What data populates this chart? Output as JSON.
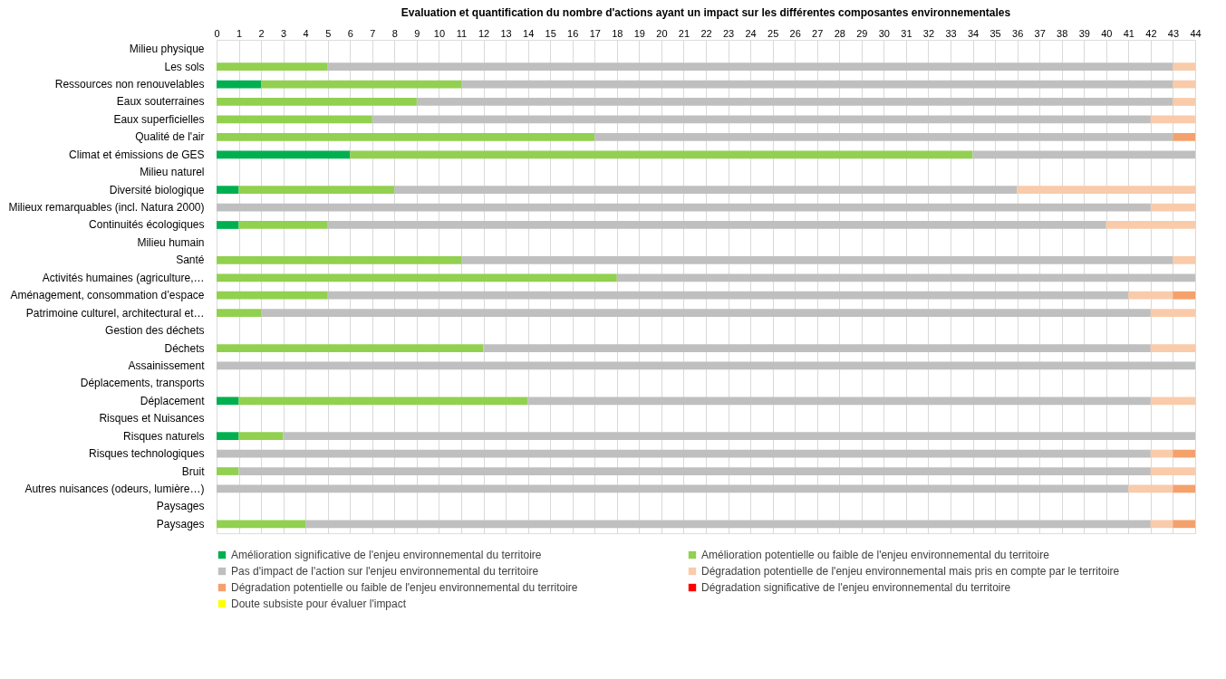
{
  "chart_data": {
    "type": "bar",
    "orientation": "horizontal",
    "stacked": true,
    "title": "Evaluation et quantification du nombre d'actions ayant un impact sur les différentes composantes environnementales",
    "categories": [
      "Milieu physique",
      "Les sols",
      "Ressources non renouvelables",
      "Eaux souterraines",
      "Eaux superficielles",
      "Qualité de l'air",
      "Climat et émissions de GES",
      "Milieu naturel",
      "Diversité biologique",
      "Milieux remarquables  (incl. Natura 2000)",
      "Continuités écologiques",
      "Milieu humain",
      "Santé",
      "Activités humaines (agriculture,…",
      "Aménagement, consommation d’espace",
      "Patrimoine culturel, architectural et…",
      "Gestion des déchets",
      "Déchets",
      "Assainissement",
      "Déplacements, transports",
      "Déplacement",
      "Risques et Nuisances",
      "Risques naturels",
      "Risques technologiques",
      "Bruit",
      "Autres nuisances (odeurs, lumière…)",
      "Paysages",
      "Paysages"
    ],
    "series": [
      {
        "name": "Amélioration significative de l'enjeu environnemental du territoire",
        "color": "#00b050",
        "values": [
          null,
          null,
          2,
          null,
          null,
          null,
          6,
          null,
          1,
          null,
          1,
          null,
          null,
          null,
          null,
          null,
          null,
          null,
          null,
          null,
          1,
          null,
          1,
          null,
          null,
          null,
          null,
          null
        ]
      },
      {
        "name": "Amélioration potentielle ou faible de l'enjeu environnemental du territoire",
        "color": "#92d050",
        "values": [
          null,
          5,
          9,
          9,
          7,
          17,
          28,
          null,
          7,
          null,
          4,
          null,
          11,
          18,
          5,
          2,
          null,
          12,
          null,
          null,
          13,
          null,
          2,
          null,
          1,
          null,
          null,
          4
        ]
      },
      {
        "name": "Pas d'impact de l'action sur l'enjeu environnemental du territoire",
        "color": "#bfbfbf",
        "values": [
          null,
          38,
          32,
          34,
          35,
          26,
          10,
          null,
          28,
          42,
          35,
          null,
          32,
          26,
          36,
          40,
          null,
          30,
          44,
          null,
          28,
          null,
          41,
          42,
          41,
          41,
          null,
          38
        ]
      },
      {
        "name": "Dégradation potentielle de l'enjeu environnemental mais pris en compte par le territoire",
        "color": "#f9cbaa",
        "values": [
          null,
          1,
          1,
          1,
          2,
          null,
          null,
          null,
          8,
          2,
          4,
          null,
          1,
          null,
          2,
          2,
          null,
          2,
          null,
          null,
          2,
          null,
          null,
          1,
          2,
          2,
          null,
          1
        ]
      },
      {
        "name": "Dégradation potentielle ou faible de l'enjeu environnemental du territoire",
        "color": "#f4a16c",
        "values": [
          null,
          null,
          null,
          null,
          null,
          1,
          null,
          null,
          null,
          null,
          null,
          null,
          null,
          null,
          1,
          null,
          null,
          null,
          null,
          null,
          null,
          null,
          null,
          1,
          null,
          1,
          null,
          1
        ]
      },
      {
        "name": "Dégradation significative de l'enjeu environnemental du territoire",
        "color": "#ff0000",
        "values": [
          null,
          null,
          null,
          null,
          null,
          null,
          null,
          null,
          null,
          null,
          null,
          null,
          null,
          null,
          null,
          null,
          null,
          null,
          null,
          null,
          null,
          null,
          null,
          null,
          null,
          null,
          null,
          null
        ]
      },
      {
        "name": "Doute subsiste pour évaluer l'impact",
        "color": "#ffff00",
        "values": [
          null,
          null,
          null,
          null,
          null,
          null,
          null,
          null,
          null,
          null,
          null,
          null,
          null,
          null,
          null,
          null,
          null,
          null,
          null,
          null,
          null,
          null,
          null,
          null,
          null,
          null,
          null,
          null
        ]
      }
    ],
    "xlim": [
      0,
      44
    ],
    "xticks": [
      0,
      1,
      2,
      3,
      4,
      5,
      6,
      7,
      8,
      9,
      10,
      11,
      12,
      13,
      14,
      15,
      16,
      17,
      18,
      19,
      20,
      21,
      22,
      23,
      24,
      25,
      26,
      27,
      28,
      29,
      30,
      31,
      32,
      33,
      34,
      35,
      36,
      37,
      38,
      39,
      40,
      41,
      42,
      43,
      44
    ],
    "grid": "x",
    "legend": "bottom"
  }
}
